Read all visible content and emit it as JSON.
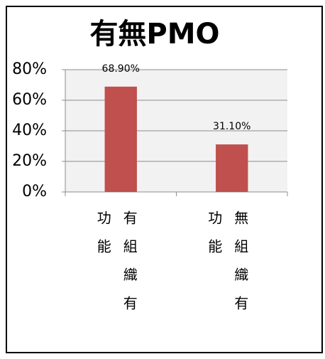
{
  "chart_data": {
    "type": "bar",
    "title": "有無PMO",
    "categories": [
      "有組織有功能",
      "無組織有功能"
    ],
    "values": [
      68.9,
      31.1
    ],
    "value_labels": [
      "68.90%",
      "31.10%"
    ],
    "color": "#c0504d",
    "ylim": [
      0,
      80
    ],
    "yticks": [
      {
        "value": 0,
        "label": "0%"
      },
      {
        "value": 20,
        "label": "20%"
      },
      {
        "value": 40,
        "label": "40%"
      },
      {
        "value": 60,
        "label": "60%"
      },
      {
        "value": 80,
        "label": "80%"
      }
    ],
    "grid": true
  }
}
